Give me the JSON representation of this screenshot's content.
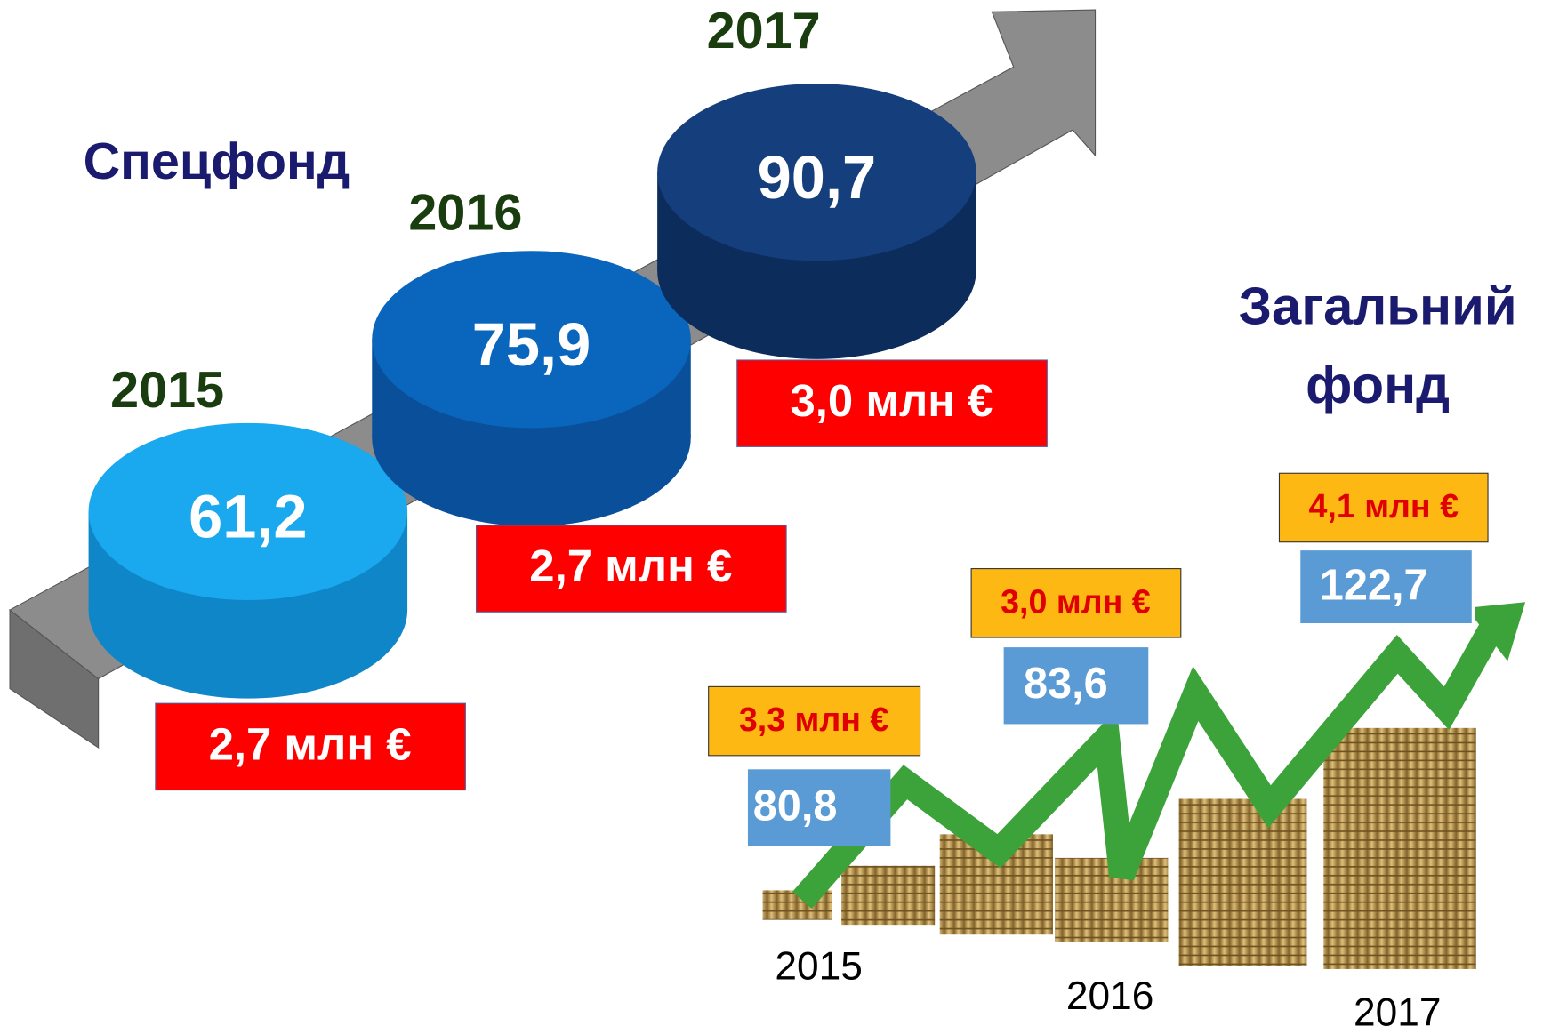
{
  "special_fund": {
    "title": "Спецфонд",
    "items": [
      {
        "year": "2015",
        "value": "61,2",
        "euro": "2,7 млн €"
      },
      {
        "year": "2016",
        "value": "75,9",
        "euro": "2,7 млн €"
      },
      {
        "year": "2017",
        "value": "90,7",
        "euro": "3,0 млн €"
      }
    ]
  },
  "general_fund": {
    "title_lines": [
      "Загальний",
      "фонд"
    ],
    "items": [
      {
        "year": "2015",
        "value": "80,8",
        "euro": "3,3 млн €"
      },
      {
        "year": "2016",
        "value": "83,6",
        "euro": "3,0 млн €"
      },
      {
        "year": "2017",
        "value": "122,7",
        "euro": "4,1 млн €"
      }
    ]
  }
}
